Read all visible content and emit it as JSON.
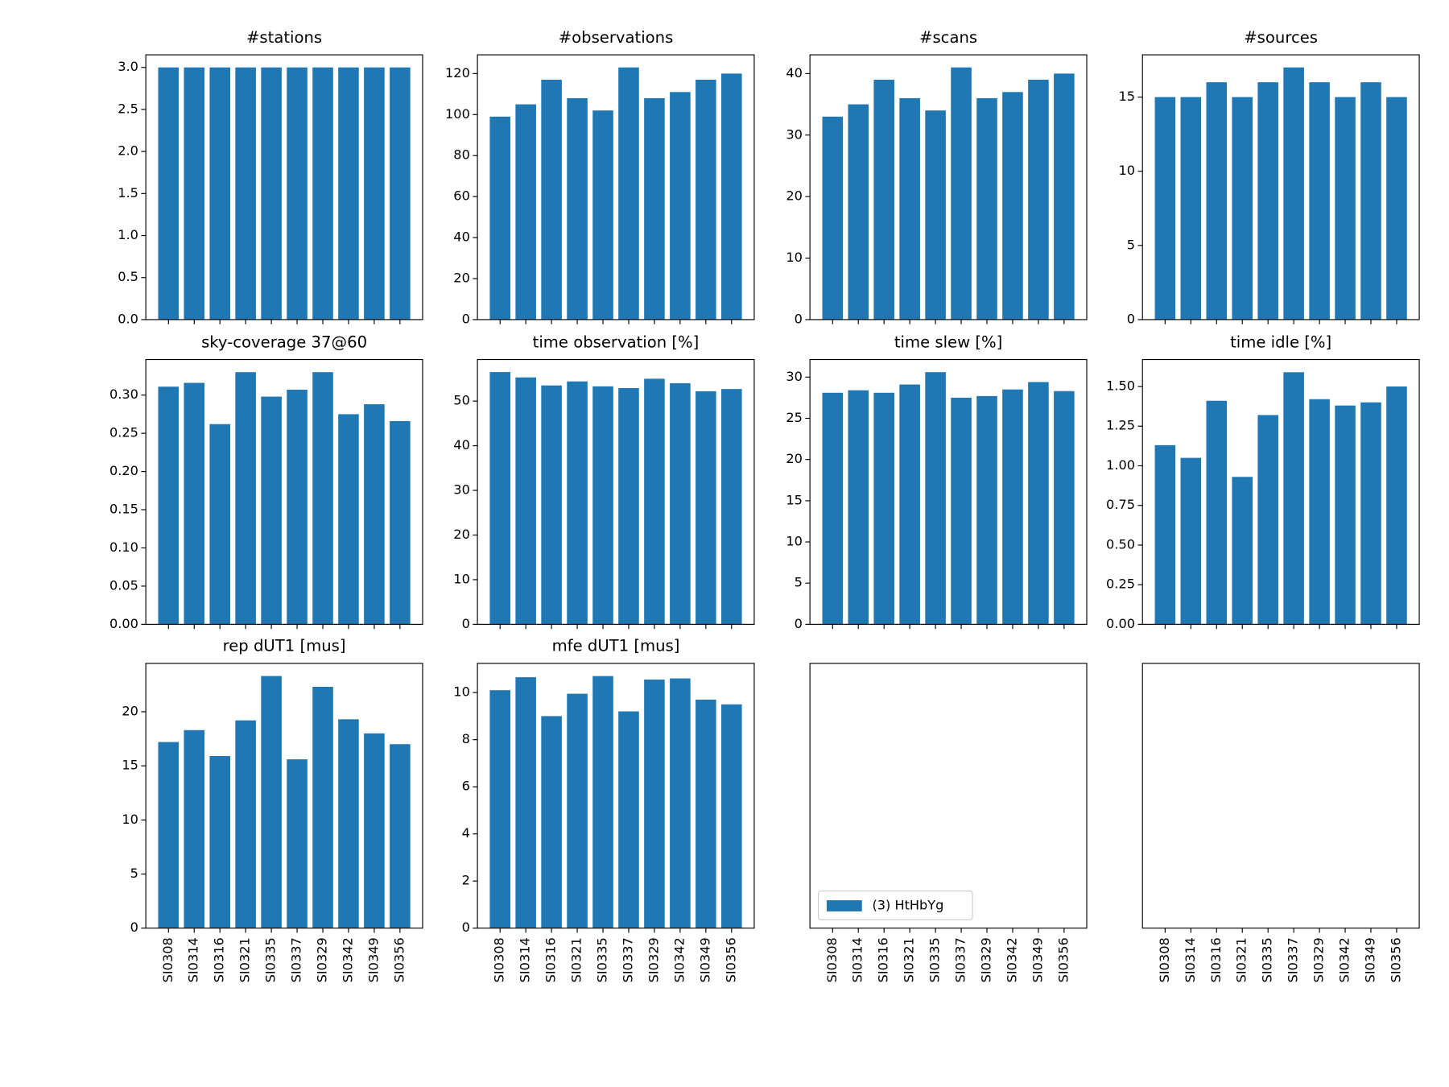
{
  "chart_data": [
    {
      "type": "bar",
      "title": "#stations",
      "color": "#1f77b4",
      "values": [
        3,
        3,
        3,
        3,
        3,
        3,
        3,
        3,
        3,
        3
      ],
      "ylim": [
        0,
        3.15
      ],
      "yticks": [
        {
          "value": 0,
          "label": "0.0"
        },
        0.5,
        {
          "value": 1,
          "label": "1.0"
        },
        1.5,
        {
          "value": 2,
          "label": "2.0"
        },
        2.5,
        {
          "value": 3,
          "label": "3.0"
        }
      ]
    },
    {
      "type": "bar",
      "title": "#observations",
      "color": "#1f77b4",
      "values": [
        99,
        105,
        117,
        108,
        102,
        123,
        108,
        111,
        117,
        120
      ],
      "ylim": [
        0,
        129.15
      ],
      "yticks": [
        0,
        20,
        40,
        60,
        80,
        100,
        120
      ]
    },
    {
      "type": "bar",
      "title": "#scans",
      "color": "#1f77b4",
      "values": [
        33,
        35,
        39,
        36,
        34,
        41,
        36,
        37,
        39,
        40
      ],
      "ylim": [
        0,
        43.05
      ],
      "yticks": [
        0,
        10,
        20,
        30,
        40
      ]
    },
    {
      "type": "bar",
      "title": "#sources",
      "color": "#1f77b4",
      "values": [
        15,
        15,
        16,
        15,
        16,
        17,
        16,
        15,
        16,
        15
      ],
      "ylim": [
        0,
        17.85
      ],
      "yticks": [
        0,
        5,
        10,
        15
      ]
    },
    {
      "type": "bar",
      "title": "sky-coverage 37@60",
      "color": "#1f77b4",
      "values": [
        0.311,
        0.316,
        0.262,
        0.33,
        0.298,
        0.307,
        0.33,
        0.275,
        0.288,
        0.266
      ],
      "ylim": [
        0,
        0.3465
      ],
      "yticks": [
        {
          "value": 0,
          "label": "0.00"
        },
        0.05,
        {
          "value": 0.1,
          "label": "0.10"
        },
        0.15,
        {
          "value": 0.2,
          "label": "0.20"
        },
        0.25,
        {
          "value": 0.3,
          "label": "0.30"
        }
      ]
    },
    {
      "type": "bar",
      "title": "time observation [%]",
      "color": "#1f77b4",
      "values": [
        56.5,
        55.3,
        53.5,
        54.4,
        53.3,
        52.9,
        55.0,
        54.0,
        52.2,
        52.7
      ],
      "ylim": [
        0,
        59.3
      ],
      "yticks": [
        0,
        10,
        20,
        30,
        40,
        50
      ]
    },
    {
      "type": "bar",
      "title": "time slew [%]",
      "color": "#1f77b4",
      "values": [
        28.1,
        28.4,
        28.1,
        29.1,
        30.6,
        27.5,
        27.7,
        28.5,
        29.4,
        28.3
      ],
      "ylim": [
        0,
        32.13
      ],
      "yticks": [
        0,
        5,
        10,
        15,
        20,
        25,
        30
      ]
    },
    {
      "type": "bar",
      "title": "time idle [%]",
      "color": "#1f77b4",
      "values": [
        1.13,
        1.05,
        1.41,
        0.93,
        1.32,
        1.59,
        1.42,
        1.38,
        1.4,
        1.5
      ],
      "ylim": [
        0,
        1.67
      ],
      "yticks": [
        {
          "value": 0,
          "label": "0.00"
        },
        0.25,
        {
          "value": 0.5,
          "label": "0.50"
        },
        0.75,
        {
          "value": 1,
          "label": "1.00"
        },
        1.25,
        {
          "value": 1.5,
          "label": "1.50"
        }
      ]
    },
    {
      "type": "bar",
      "title": "rep dUT1 [mus]",
      "color": "#1f77b4",
      "categories": [
        "SI0308",
        "SI0314",
        "SI0316",
        "SI0321",
        "SI0335",
        "SI0337",
        "SI0329",
        "SI0342",
        "SI0349",
        "SI0356"
      ],
      "values": [
        17.2,
        18.3,
        15.9,
        19.2,
        23.3,
        15.6,
        22.3,
        19.3,
        18.0,
        17.0
      ],
      "ylim": [
        0,
        24.47
      ],
      "yticks": [
        0,
        5,
        10,
        15,
        20
      ]
    },
    {
      "type": "bar",
      "title": "mfe dUT1 [mus]",
      "color": "#1f77b4",
      "categories": [
        "SI0308",
        "SI0314",
        "SI0316",
        "SI0321",
        "SI0335",
        "SI0337",
        "SI0329",
        "SI0342",
        "SI0349",
        "SI0356"
      ],
      "values": [
        10.1,
        10.65,
        9.0,
        9.95,
        10.7,
        9.2,
        10.55,
        10.6,
        9.7,
        9.5
      ],
      "ylim": [
        0,
        11.24
      ],
      "yticks": [
        0,
        2,
        4,
        6,
        8,
        10
      ]
    },
    {
      "type": "bar",
      "categories": [
        "SI0308",
        "SI0314",
        "SI0316",
        "SI0321",
        "SI0335",
        "SI0337",
        "SI0329",
        "SI0342",
        "SI0349",
        "SI0356"
      ],
      "series": [
        {
          "name": "(3) HtHbYg",
          "color": "#1f77b4"
        }
      ],
      "legend": "lower left"
    },
    {
      "type": "bar",
      "categories": [
        "SI0308",
        "SI0314",
        "SI0316",
        "SI0321",
        "SI0335",
        "SI0337",
        "SI0329",
        "SI0342",
        "SI0349",
        "SI0356"
      ]
    }
  ]
}
